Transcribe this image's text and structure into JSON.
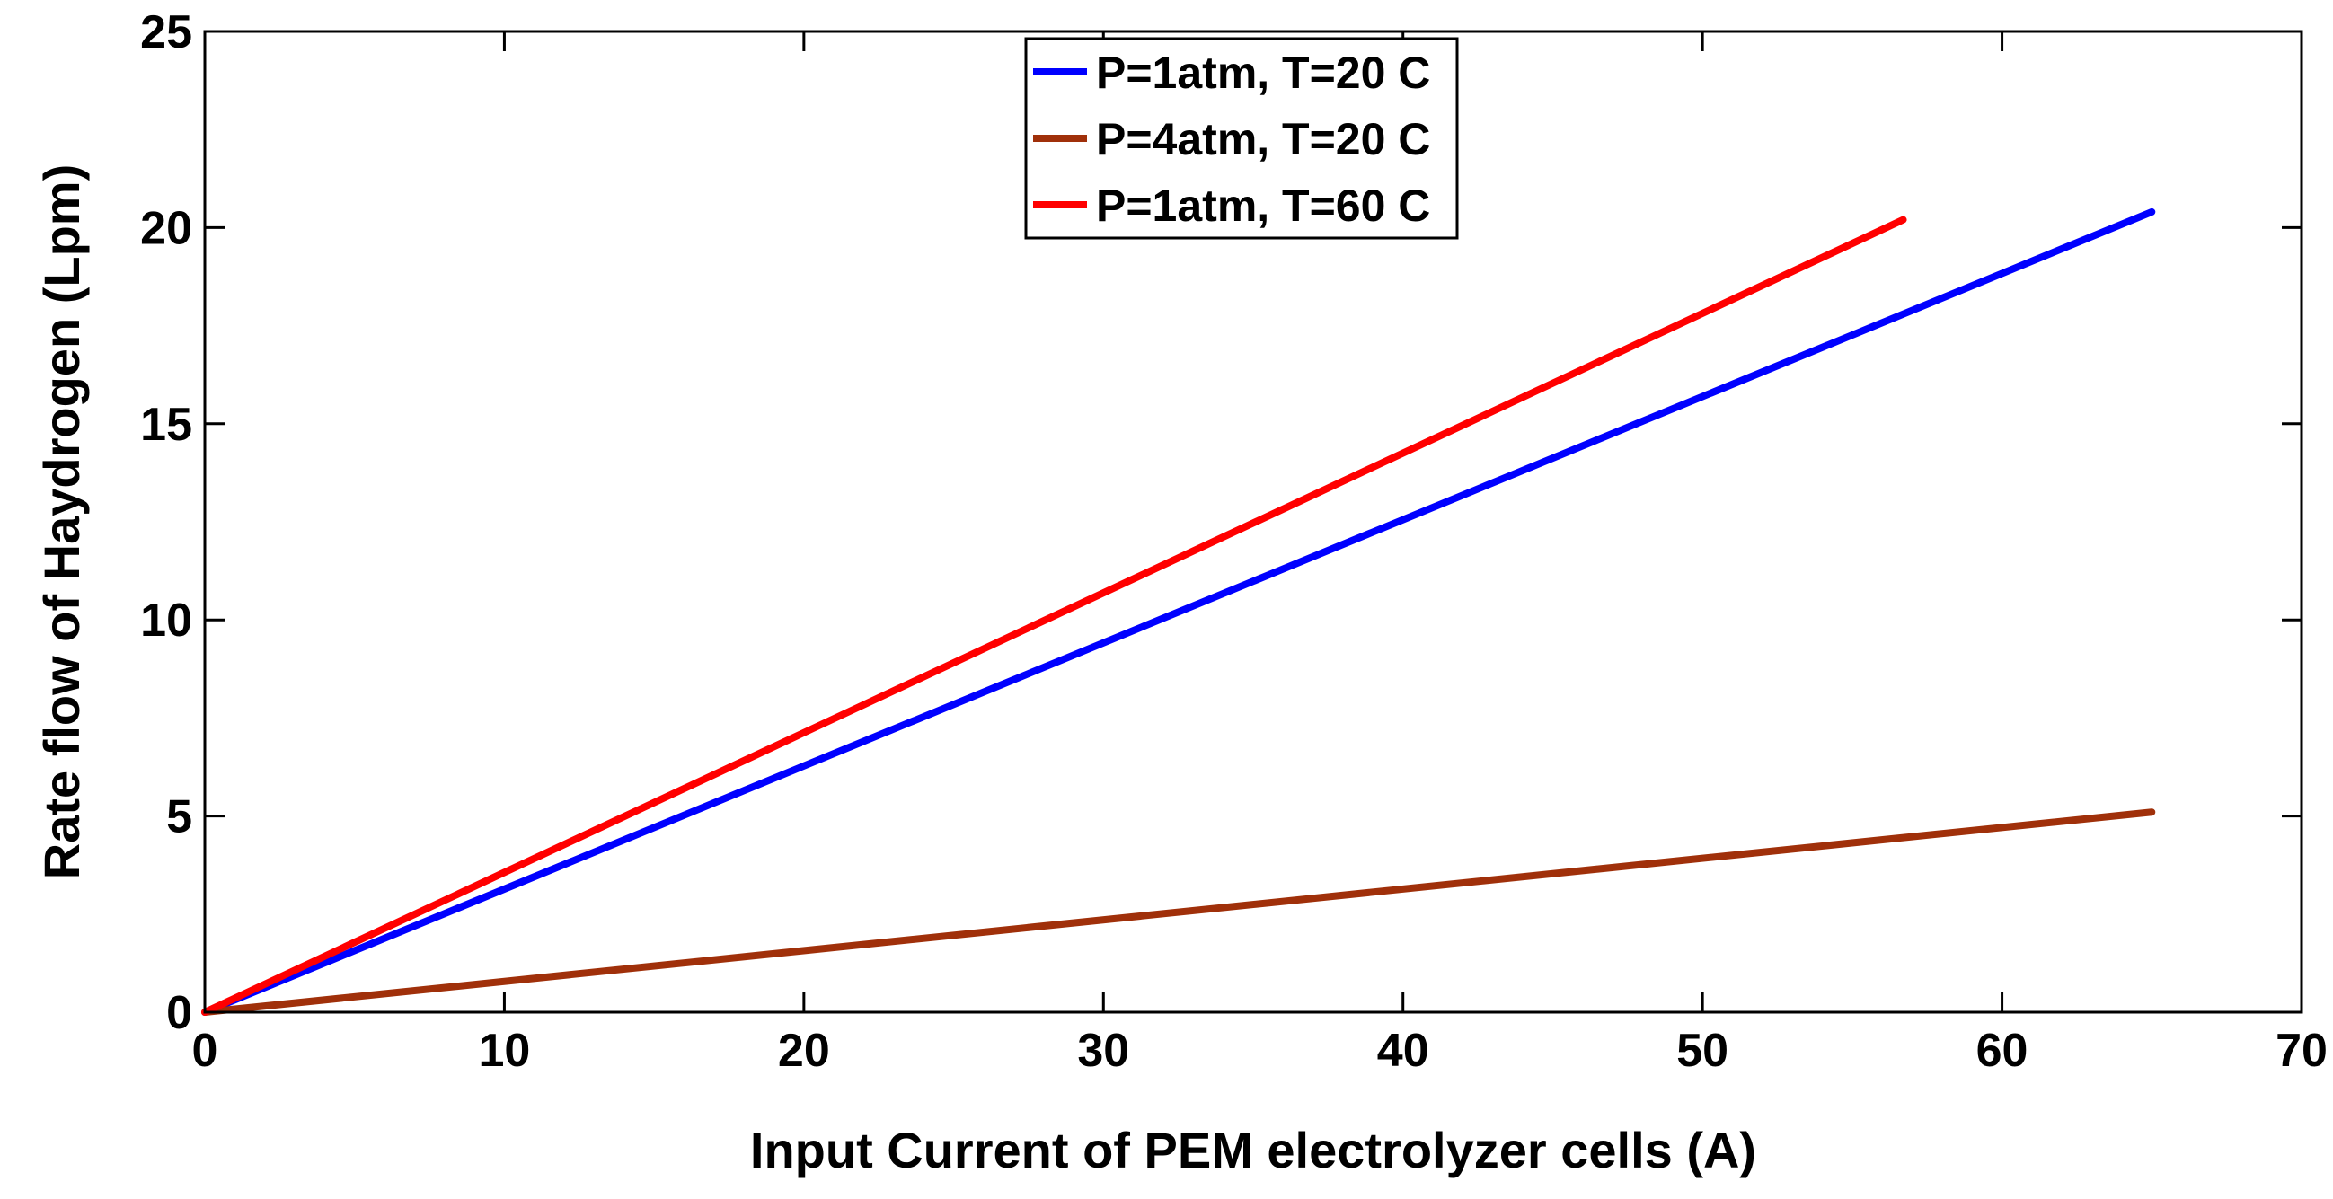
{
  "chart_data": {
    "type": "line",
    "title": "",
    "xlabel": "Input Current of PEM electrolyzer cells (A)",
    "ylabel": "Rate flow of Haydrogen (Lpm)",
    "xlim": [
      0,
      70
    ],
    "ylim": [
      0,
      25
    ],
    "xticks": [
      0,
      10,
      20,
      30,
      40,
      50,
      60,
      70
    ],
    "yticks": [
      0,
      5,
      10,
      15,
      20,
      25
    ],
    "xtick_labels": [
      "0",
      "10",
      "20",
      "30",
      "40",
      "50",
      "60",
      "70"
    ],
    "ytick_labels": [
      "0",
      "5",
      "10",
      "15",
      "20",
      "25"
    ],
    "grid": false,
    "legend_position": "top-center",
    "series": [
      {
        "name": "P=1atm, T=20 C",
        "color": "#0000ff",
        "x": [
          0,
          65
        ],
        "y": [
          0,
          20.4
        ]
      },
      {
        "name": "P=4atm, T=20 C",
        "color": "#a0300a",
        "x": [
          0,
          65
        ],
        "y": [
          0,
          5.1
        ]
      },
      {
        "name": "P=1atm, T=60 C",
        "color": "#ff0000",
        "x": [
          0,
          56.7
        ],
        "y": [
          0,
          20.2
        ]
      }
    ]
  }
}
